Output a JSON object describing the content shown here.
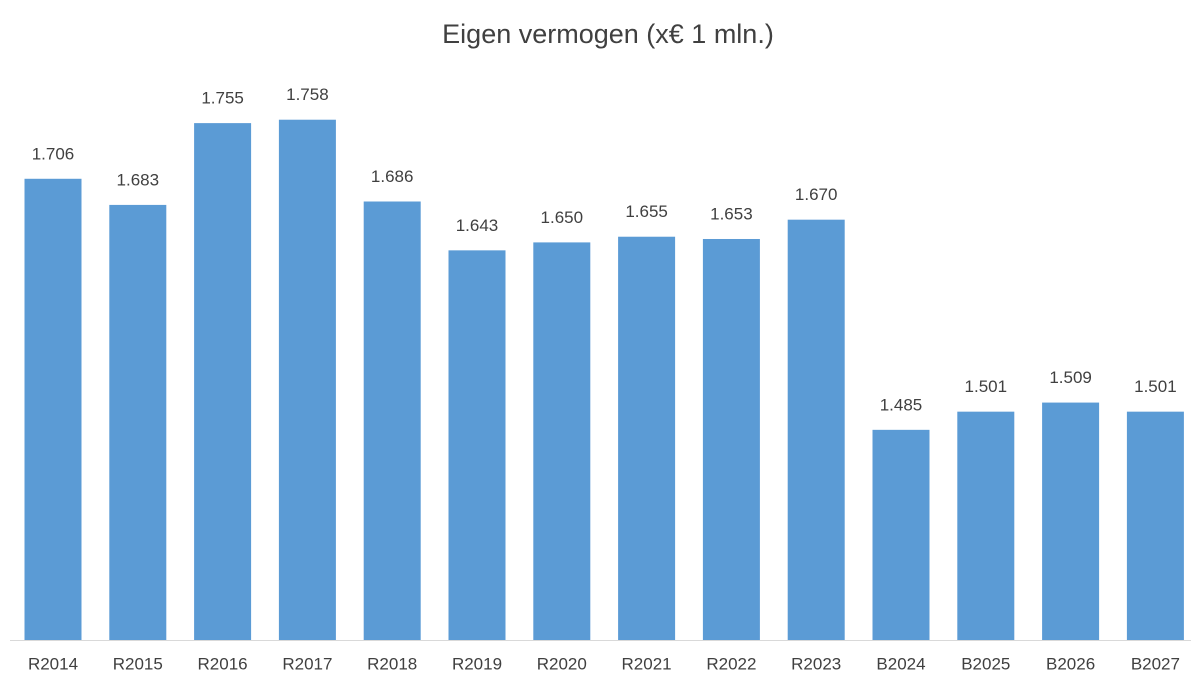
{
  "chart_data": {
    "type": "bar",
    "title": "Eigen vermogen (x€ 1 mln.)",
    "categories": [
      "R2014",
      "R2015",
      "R2016",
      "R2017",
      "R2018",
      "R2019",
      "R2020",
      "R2021",
      "R2022",
      "R2023",
      "B2024",
      "B2025",
      "B2026",
      "B2027"
    ],
    "values": [
      1706,
      1683,
      1755,
      1758,
      1686,
      1643,
      1650,
      1655,
      1653,
      1670,
      1485,
      1501,
      1509,
      1501
    ],
    "value_labels": [
      "1.706",
      "1.683",
      "1.755",
      "1.758",
      "1.686",
      "1.643",
      "1.650",
      "1.655",
      "1.653",
      "1.670",
      "1.485",
      "1.501",
      "1.509",
      "1.501"
    ],
    "color": "#5b9bd5",
    "ylim": [
      1300,
      1800
    ]
  }
}
